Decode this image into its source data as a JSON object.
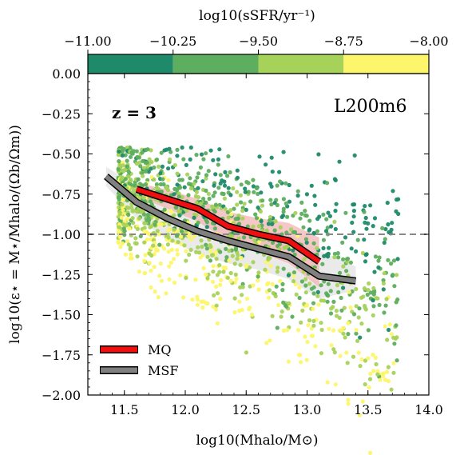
{
  "chart_data": {
    "type": "scatter",
    "xlabel": "log10(Mhalo/M⊙)",
    "ylabel": "log10(ε⋆ = M⋆/Mhalo/(Ωb/Ωm))",
    "xlim": [
      11.2,
      14.0
    ],
    "ylim": [
      -2.0,
      0.0
    ],
    "x_ticks": [
      "11.5",
      "12.0",
      "12.5",
      "13.0",
      "13.5",
      "14.0"
    ],
    "y_ticks": [
      "0.00",
      "−0.25",
      "−0.50",
      "−0.75",
      "−1.00",
      "−1.25",
      "−1.50",
      "−1.75",
      "−2.00"
    ],
    "annotations": {
      "redshift": "z = 3",
      "run": "L200m6"
    },
    "reference_line": {
      "y": -1.0,
      "style": "dashed",
      "color": "#888888"
    },
    "colorbar": {
      "label": "log10(sSFR/yr⁻¹)",
      "ticks": [
        "−11.00",
        "−10.25",
        "−9.50",
        "−8.75",
        "−8.00"
      ],
      "bins": [
        {
          "from": -11.0,
          "to": -10.25,
          "color": "#1e8a6a"
        },
        {
          "from": -10.25,
          "to": -9.5,
          "color": "#5dae5e"
        },
        {
          "from": -9.5,
          "to": -8.75,
          "color": "#a6d25a"
        },
        {
          "from": -8.75,
          "to": -8.0,
          "color": "#fdf56a"
        }
      ]
    },
    "series": [
      {
        "name": "MQ",
        "color": "#ee1010",
        "band_color": "#f2b4b4",
        "x": [
          11.6,
          11.85,
          12.1,
          12.35,
          12.6,
          12.85,
          13.1
        ],
        "y": [
          -0.72,
          -0.78,
          -0.84,
          -0.95,
          -1.0,
          -1.04,
          -1.17
        ],
        "band_upper": [
          -0.68,
          -0.72,
          -0.78,
          -0.86,
          -0.9,
          -0.93,
          -1.02
        ],
        "band_lower": [
          -0.76,
          -0.84,
          -0.92,
          -1.04,
          -1.11,
          -1.18,
          -1.33
        ]
      },
      {
        "name": "MSF",
        "color": "#808080",
        "band_color": "#e6e6e6",
        "x": [
          11.35,
          11.6,
          11.85,
          12.1,
          12.35,
          12.6,
          12.85,
          13.1,
          13.4
        ],
        "y": [
          -0.64,
          -0.8,
          -0.9,
          -0.98,
          -1.04,
          -1.09,
          -1.14,
          -1.26,
          -1.29
        ],
        "band_upper": [
          -0.58,
          -0.7,
          -0.78,
          -0.86,
          -0.92,
          -0.97,
          -1.0,
          -1.1,
          -1.2
        ],
        "band_lower": [
          -0.7,
          -0.9,
          -1.03,
          -1.12,
          -1.18,
          -1.22,
          -1.28,
          -1.4,
          -1.35
        ]
      }
    ],
    "scatter_cloud": {
      "x_range": [
        11.45,
        13.75
      ],
      "n_points": 1400
    },
    "legend": {
      "placement": "lower-left",
      "entries": [
        "MQ",
        "MSF"
      ]
    }
  }
}
